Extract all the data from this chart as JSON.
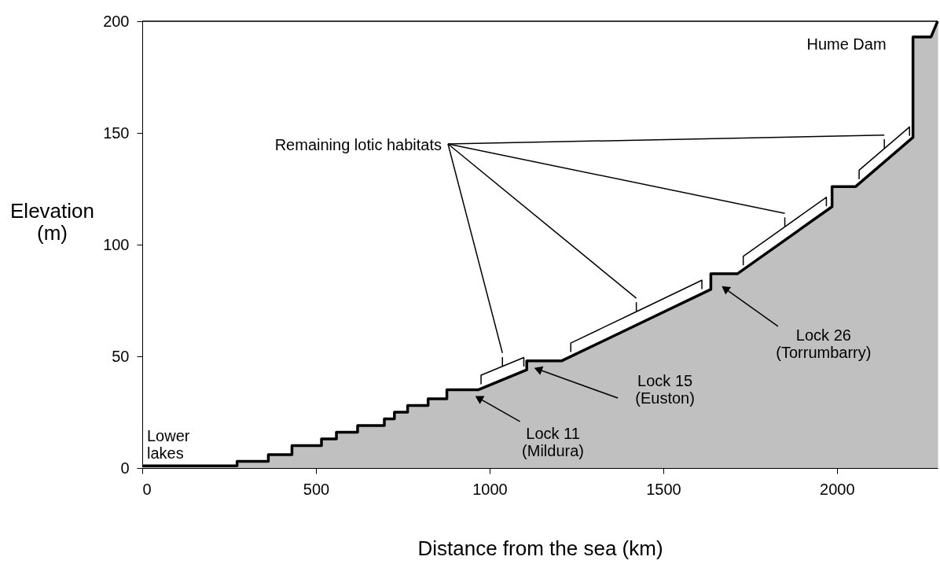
{
  "chart_data": {
    "type": "area",
    "xlabel": "Distance from the sea (km)",
    "ylabel": "Elevation\n(m)",
    "x": [
      0,
      273,
      273,
      363,
      363,
      431,
      431,
      516,
      516,
      559,
      559,
      620,
      620,
      697,
      697,
      726,
      726,
      764,
      764,
      823,
      823,
      877,
      877,
      967,
      1107,
      1107,
      1208,
      1637,
      1637,
      1714,
      1986,
      1986,
      2054,
      2219,
      2219,
      2271,
      2290
    ],
    "series": [
      {
        "color": "#c0c0c0",
        "values": [
          1,
          1,
          3,
          3,
          6,
          6,
          10,
          10,
          13,
          13,
          16,
          16,
          19,
          19,
          22,
          22,
          25,
          25,
          28,
          28,
          31,
          31,
          35,
          35,
          44,
          48,
          48,
          80,
          87,
          87,
          117,
          126,
          126,
          148,
          193,
          193,
          200
        ]
      }
    ],
    "xlim": [
      0,
      2290
    ],
    "xticks": [
      0,
      500,
      1000,
      1500,
      2000
    ],
    "ylim": [
      0,
      200
    ],
    "yticks": [
      0,
      50,
      100,
      150,
      200
    ],
    "grid": false,
    "annotations": [
      "Lower\nlakes",
      "Hume Dam",
      {
        "text": "Lock 11\n(Mildura)",
        "x": 972,
        "y": 31
      },
      {
        "text": "Lock 15\n(Euston)",
        "x": 1143,
        "y": 44
      },
      {
        "text": "Lock 26\n(Torrumbarry)",
        "x": 1681,
        "y": 80
      },
      "Remaining lotic habitats"
    ]
  }
}
